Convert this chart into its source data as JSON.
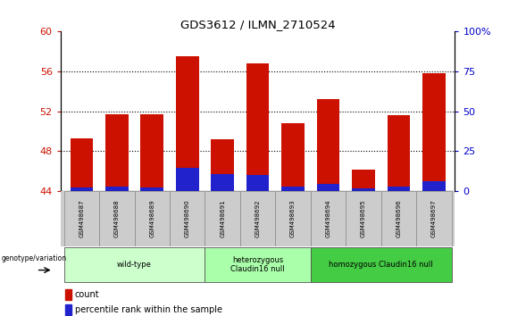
{
  "title": "GDS3612 / ILMN_2710524",
  "samples": [
    "GSM498687",
    "GSM498688",
    "GSM498689",
    "GSM498690",
    "GSM498691",
    "GSM498692",
    "GSM498693",
    "GSM498694",
    "GSM498695",
    "GSM498696",
    "GSM498697"
  ],
  "count_values": [
    49.3,
    51.7,
    51.7,
    57.5,
    49.2,
    56.8,
    50.8,
    53.2,
    46.2,
    51.6,
    55.8
  ],
  "percentile_values": [
    44.35,
    44.45,
    44.35,
    46.3,
    45.7,
    45.6,
    44.45,
    44.7,
    44.25,
    44.45,
    45.0
  ],
  "ymin": 44,
  "ymax": 60,
  "yticks": [
    44,
    48,
    52,
    56,
    60
  ],
  "right_yticks": [
    0,
    25,
    50,
    75,
    100
  ],
  "right_yticklabels": [
    "0",
    "25",
    "50",
    "75",
    "100%"
  ],
  "bar_color": "#cc1100",
  "percentile_color": "#2222cc",
  "bar_width": 0.65,
  "groups": [
    {
      "label": "wild-type",
      "start": 0,
      "end": 3,
      "color": "#ccffcc"
    },
    {
      "label": "heterozygous\nClaudin16 null",
      "start": 4,
      "end": 6,
      "color": "#aaffaa"
    },
    {
      "label": "homozygous Claudin16 null",
      "start": 7,
      "end": 10,
      "color": "#44cc44"
    }
  ],
  "xlabel_genotype": "genotype/variation",
  "legend_count_label": "count",
  "legend_percentile_label": "percentile rank within the sample",
  "bg_color": "#ffffff",
  "plot_bg_color": "#ffffff",
  "tick_label_color_left": "#cc1100",
  "tick_label_color_right": "#0000cc",
  "grid_yticks": [
    48,
    52,
    56
  ]
}
